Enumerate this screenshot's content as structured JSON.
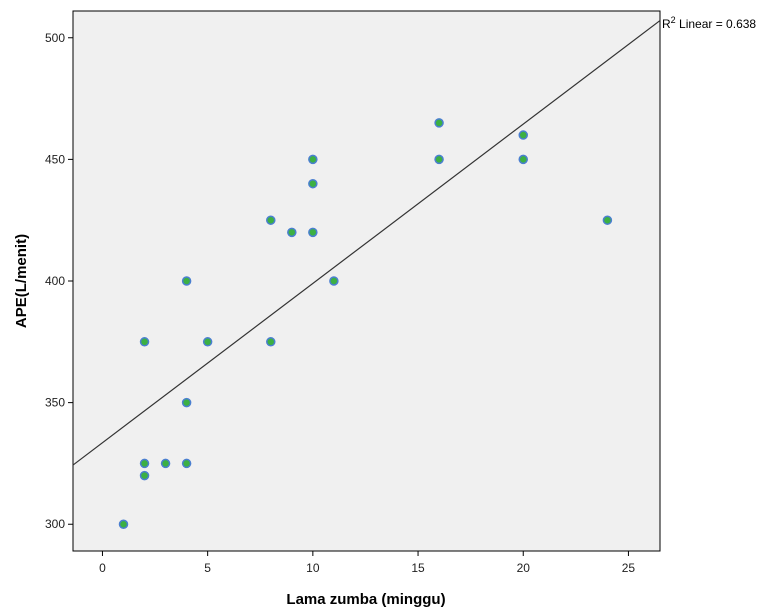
{
  "chart_data": {
    "type": "scatter",
    "xlabel": "Lama zumba (minggu)",
    "ylabel": "APE(L/menit)",
    "xlim": [
      -1.4,
      26.5
    ],
    "ylim": [
      289,
      511
    ],
    "xticks": [
      0,
      5,
      10,
      15,
      20,
      25
    ],
    "yticks": [
      300,
      350,
      400,
      450,
      500
    ],
    "points": [
      {
        "x": 1,
        "y": 300
      },
      {
        "x": 2,
        "y": 375
      },
      {
        "x": 2,
        "y": 325
      },
      {
        "x": 2,
        "y": 320
      },
      {
        "x": 3,
        "y": 325
      },
      {
        "x": 4,
        "y": 400
      },
      {
        "x": 4,
        "y": 350
      },
      {
        "x": 4,
        "y": 325
      },
      {
        "x": 5,
        "y": 375
      },
      {
        "x": 8,
        "y": 425
      },
      {
        "x": 8,
        "y": 375
      },
      {
        "x": 9,
        "y": 420
      },
      {
        "x": 10,
        "y": 450
      },
      {
        "x": 10,
        "y": 440
      },
      {
        "x": 10,
        "y": 420
      },
      {
        "x": 11,
        "y": 400
      },
      {
        "x": 16,
        "y": 465
      },
      {
        "x": 16,
        "y": 450
      },
      {
        "x": 20,
        "y": 460
      },
      {
        "x": 20,
        "y": 450
      },
      {
        "x": 24,
        "y": 425
      }
    ],
    "fit_line": {
      "intercept": 333.5,
      "slope": 6.55
    },
    "annotation": {
      "prefix": "R",
      "superscript": "2",
      "text": " Linear = 0.638"
    },
    "grid": false,
    "colors": {
      "plot_background": "#f0f0f0",
      "point_fill": "#3cb043",
      "point_stroke": "#4a7fd0",
      "fit_line": "#333333"
    }
  }
}
